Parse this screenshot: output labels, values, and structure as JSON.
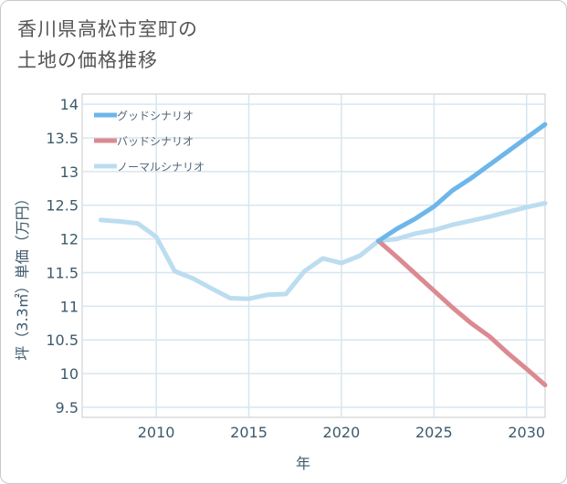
{
  "title": {
    "line1": "香川県高松市室町の",
    "line2": "土地の価格推移"
  },
  "chart_data": {
    "type": "line",
    "xlabel": "年",
    "ylabel": "坪（3.3㎡）単価（万円）",
    "xlim": [
      2006,
      2031
    ],
    "ylim": [
      9.35,
      14.15
    ],
    "x_ticks": [
      2010,
      2015,
      2020,
      2025,
      2030
    ],
    "y_ticks": [
      9.5,
      10,
      10.5,
      11,
      11.5,
      12,
      12.5,
      13,
      13.5,
      14
    ],
    "grid": true,
    "legend_position": "top-left",
    "series": [
      {
        "name": "グッドシナリオ",
        "color": "#6db6ea",
        "x": [
          2022,
          2023,
          2024,
          2025,
          2026,
          2027,
          2028,
          2029,
          2030,
          2031
        ],
        "values": [
          11.97,
          12.15,
          12.3,
          12.48,
          12.72,
          12.9,
          13.1,
          13.3,
          13.5,
          13.7
        ]
      },
      {
        "name": "バッドシナリオ",
        "color": "#dc8a91",
        "x": [
          2022,
          2023,
          2024,
          2025,
          2026,
          2027,
          2028,
          2029,
          2030,
          2031
        ],
        "values": [
          11.97,
          11.73,
          11.48,
          11.23,
          10.98,
          10.75,
          10.55,
          10.3,
          10.07,
          9.83
        ]
      },
      {
        "name": "ノーマルシナリオ",
        "color": "#bcddf0",
        "x": [
          2007,
          2008,
          2009,
          2010,
          2011,
          2012,
          2013,
          2014,
          2015,
          2016,
          2017,
          2018,
          2019,
          2020,
          2021,
          2022,
          2023,
          2024,
          2025,
          2026,
          2027,
          2028,
          2029,
          2030,
          2031
        ],
        "values": [
          12.28,
          12.26,
          12.23,
          12.03,
          11.52,
          11.41,
          11.26,
          11.12,
          11.11,
          11.17,
          11.18,
          11.52,
          11.71,
          11.64,
          11.75,
          11.97,
          12.0,
          12.08,
          12.13,
          12.21,
          12.27,
          12.33,
          12.4,
          12.47,
          12.53
        ]
      }
    ]
  }
}
